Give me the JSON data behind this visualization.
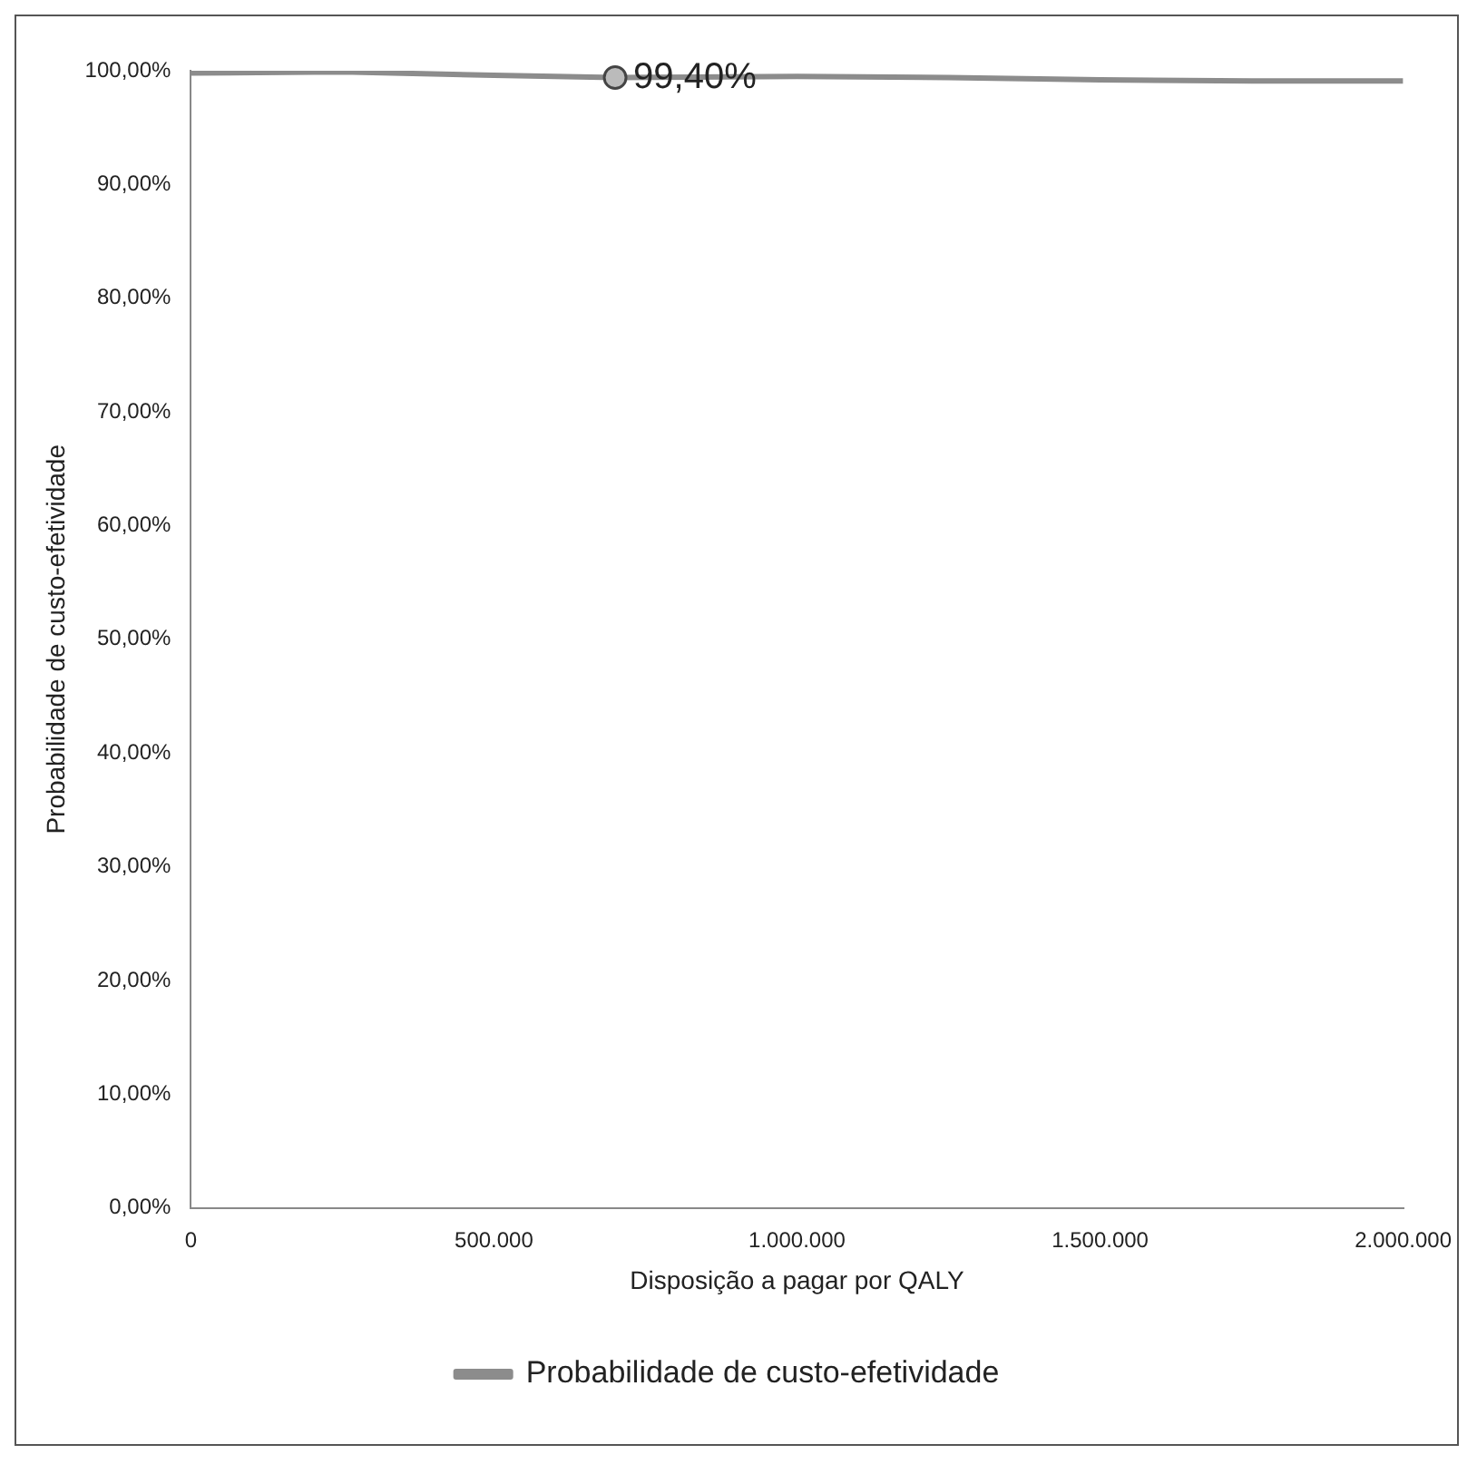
{
  "chart_data": {
    "type": "line",
    "xlabel": "Disposição a pagar por QALY",
    "ylabel": "Probabilidade de custo-efetividade",
    "xlim": [
      0,
      2000000
    ],
    "xticks": [
      0,
      {
        "value": 500000,
        "label": "500.000"
      },
      {
        "value": 1000000,
        "label": "1.000.000"
      },
      {
        "value": 1500000,
        "label": "1.500.000"
      },
      {
        "value": 2000000,
        "label": "2.000.000"
      }
    ],
    "ylim": [
      0,
      100
    ],
    "yticks": [
      {
        "value": 0,
        "label": "0,00%"
      },
      {
        "value": 10,
        "label": "10,00%"
      },
      {
        "value": 20,
        "label": "20,00%"
      },
      {
        "value": 30,
        "label": "30,00%"
      },
      {
        "value": 40,
        "label": "40,00%"
      },
      {
        "value": 50,
        "label": "50,00%"
      },
      {
        "value": 60,
        "label": "60,00%"
      },
      {
        "value": 70,
        "label": "70,00%"
      },
      {
        "value": 80,
        "label": "80,00%"
      },
      {
        "value": 90,
        "label": "90,00%"
      },
      {
        "value": 100,
        "label": "100,00%"
      }
    ],
    "series": [
      {
        "name": "Probabilidade de custo-efetividade",
        "color": "#8c8c8c",
        "x": [
          0,
          250000,
          500000,
          700000,
          1000000,
          1250000,
          1500000,
          1750000,
          2000000
        ],
        "values": [
          99.8,
          99.9,
          99.6,
          99.4,
          99.5,
          99.4,
          99.2,
          99.1,
          99.1
        ]
      }
    ],
    "annotations": [
      {
        "text": "99,40%",
        "x": 700000,
        "y": 99.4
      }
    ],
    "grid": false,
    "legend": "bottom",
    "marker": "none",
    "line_style": "solid"
  }
}
